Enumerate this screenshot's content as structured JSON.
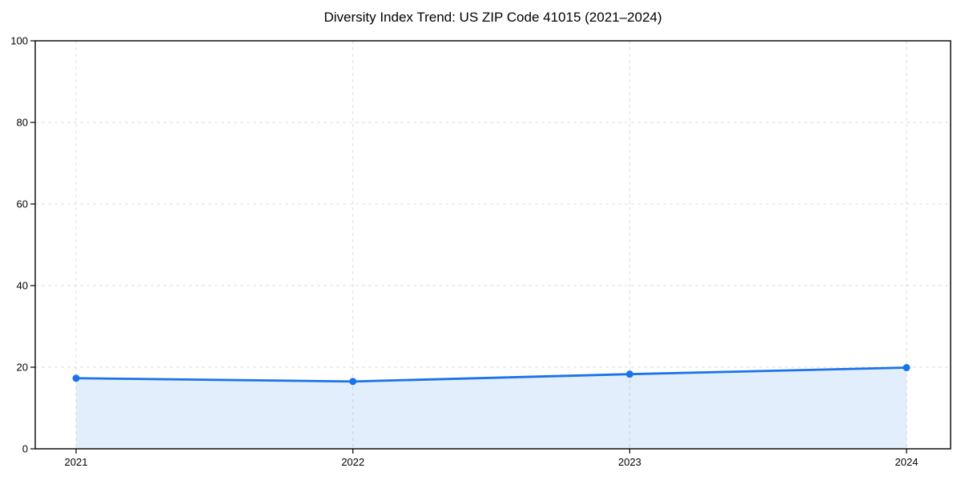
{
  "chart_data": {
    "type": "line",
    "title": "Diversity Index Trend: US ZIP Code 41015 (2021–2024)",
    "categories": [
      "2021",
      "2022",
      "2023",
      "2024"
    ],
    "series": [
      {
        "name": "Diversity Index",
        "values": [
          17.3,
          16.5,
          18.3,
          19.9
        ]
      }
    ],
    "xlabel": "",
    "ylabel": "",
    "ylim": [
      0,
      100
    ],
    "yticks": [
      0,
      20,
      40,
      60,
      80,
      100
    ],
    "grid": "dashed",
    "legend": "none",
    "area_fill": true,
    "marker": "circle",
    "colors": {
      "line": "#1a73e8",
      "marker": "#1a73e8",
      "fill": "rgba(26,115,232,0.12)",
      "grid": "#dddddd",
      "axis": "#000000",
      "text": "#000000",
      "background": "#ffffff"
    }
  }
}
